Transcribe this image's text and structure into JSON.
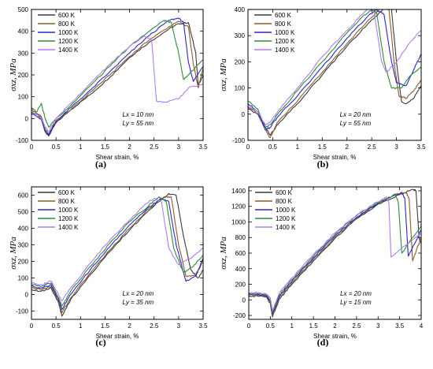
{
  "colors": {
    "600 K": "#3a3a3a",
    "800 K": "#8b5a2b",
    "1000 K": "#2828d0",
    "1200 K": "#2e8b3a",
    "1400 K": "#b07cf0"
  },
  "chart_data": [
    {
      "type": "line",
      "panel_label": "(a)",
      "xlabel": "Shear strain, %",
      "ylabel": "σxz, MPa",
      "xlim": [
        0.0,
        3.5
      ],
      "ylim": [
        -100,
        500
      ],
      "xticks": [
        0.0,
        0.5,
        1.0,
        1.5,
        2.0,
        2.5,
        3.0,
        3.5
      ],
      "yticks": [
        -100,
        0,
        100,
        200,
        300,
        400,
        500
      ],
      "legend_loc": "top-left",
      "annotation": [
        "Lx = 10 nm",
        "Ly = 55 nm"
      ],
      "series": [
        {
          "name": "600 K",
          "x": [
            0.0,
            0.1,
            0.2,
            0.28,
            0.35,
            0.5,
            0.8,
            1.2,
            1.6,
            2.0,
            2.4,
            2.8,
            3.0,
            3.2,
            3.35,
            3.4,
            3.5
          ],
          "y": [
            30,
            20,
            0,
            -60,
            -80,
            -20,
            40,
            110,
            190,
            280,
            350,
            410,
            435,
            440,
            300,
            150,
            200
          ]
        },
        {
          "name": "800 K",
          "x": [
            0.0,
            0.1,
            0.2,
            0.28,
            0.35,
            0.5,
            0.8,
            1.2,
            1.6,
            2.0,
            2.4,
            2.8,
            3.0,
            3.2,
            3.3,
            3.4,
            3.5
          ],
          "y": [
            40,
            25,
            10,
            -50,
            -70,
            -10,
            40,
            120,
            200,
            285,
            360,
            420,
            445,
            420,
            250,
            140,
            230
          ]
        },
        {
          "name": "1000 K",
          "x": [
            0.0,
            0.1,
            0.2,
            0.28,
            0.35,
            0.5,
            0.8,
            1.2,
            1.6,
            2.0,
            2.4,
            2.8,
            3.0,
            3.1,
            3.2,
            3.3,
            3.5
          ],
          "y": [
            25,
            10,
            -5,
            -60,
            -75,
            -15,
            50,
            130,
            215,
            300,
            380,
            450,
            460,
            440,
            260,
            170,
            240
          ]
        },
        {
          "name": "1200 K",
          "x": [
            0.0,
            0.1,
            0.2,
            0.28,
            0.35,
            0.5,
            0.8,
            1.2,
            1.6,
            2.0,
            2.4,
            2.7,
            2.85,
            3.0,
            3.1,
            3.2,
            3.5
          ],
          "y": [
            50,
            30,
            70,
            0,
            -40,
            0,
            60,
            150,
            240,
            330,
            400,
            450,
            440,
            300,
            180,
            200,
            270
          ]
        },
        {
          "name": "1400 K",
          "x": [
            0.0,
            0.1,
            0.2,
            0.28,
            0.35,
            0.5,
            0.8,
            1.2,
            1.6,
            2.0,
            2.3,
            2.45,
            2.55,
            2.7,
            3.0,
            3.2,
            3.5
          ],
          "y": [
            30,
            20,
            0,
            -40,
            -60,
            0,
            70,
            160,
            250,
            330,
            380,
            360,
            80,
            75,
            90,
            140,
            160
          ]
        }
      ]
    },
    {
      "type": "line",
      "panel_label": "(b)",
      "xlabel": "Shear strain, %",
      "ylabel": "σxz, MPa",
      "xlim": [
        0.0,
        3.5
      ],
      "ylim": [
        -100,
        400
      ],
      "xticks": [
        0.0,
        0.5,
        1.0,
        1.5,
        2.0,
        2.5,
        3.0,
        3.5
      ],
      "yticks": [
        -100,
        0,
        100,
        200,
        300,
        400
      ],
      "legend_loc": "top-left",
      "annotation": [
        "Lx = 20 nm",
        "Ly = 55 nm"
      ],
      "series": [
        {
          "name": "600 K",
          "x": [
            0.0,
            0.2,
            0.35,
            0.45,
            0.6,
            1.0,
            1.5,
            2.0,
            2.5,
            2.8,
            2.9,
            3.0,
            3.1,
            3.2,
            3.35,
            3.5
          ],
          "y": [
            20,
            0,
            -50,
            -80,
            -40,
            40,
            150,
            260,
            360,
            410,
            400,
            200,
            50,
            40,
            60,
            110
          ]
        },
        {
          "name": "800 K",
          "x": [
            0.0,
            0.2,
            0.35,
            0.45,
            0.6,
            1.0,
            1.5,
            2.0,
            2.5,
            2.7,
            2.85,
            2.95,
            3.05,
            3.2,
            3.35,
            3.5
          ],
          "y": [
            30,
            0,
            -60,
            -90,
            -30,
            50,
            160,
            270,
            370,
            410,
            400,
            200,
            70,
            60,
            90,
            130
          ]
        },
        {
          "name": "1000 K",
          "x": [
            0.0,
            0.2,
            0.35,
            0.45,
            0.6,
            1.0,
            1.5,
            2.0,
            2.4,
            2.6,
            2.75,
            2.9,
            3.0,
            3.2,
            3.35,
            3.5
          ],
          "y": [
            40,
            10,
            -60,
            -50,
            -10,
            70,
            180,
            290,
            370,
            400,
            380,
            200,
            120,
            110,
            170,
            230
          ]
        },
        {
          "name": "1200 K",
          "x": [
            0.0,
            0.2,
            0.35,
            0.45,
            0.6,
            1.0,
            1.5,
            2.0,
            2.3,
            2.5,
            2.6,
            2.75,
            2.9,
            3.1,
            3.3,
            3.5
          ],
          "y": [
            50,
            20,
            -50,
            -40,
            0,
            90,
            200,
            310,
            370,
            400,
            390,
            200,
            100,
            100,
            150,
            180
          ]
        },
        {
          "name": "1400 K",
          "x": [
            0.0,
            0.2,
            0.35,
            0.45,
            0.6,
            1.0,
            1.5,
            2.0,
            2.3,
            2.45,
            2.55,
            2.7,
            2.8,
            3.0,
            3.3,
            3.5
          ],
          "y": [
            30,
            10,
            -40,
            -30,
            10,
            100,
            220,
            320,
            380,
            410,
            390,
            200,
            160,
            200,
            280,
            320
          ]
        }
      ]
    },
    {
      "type": "line",
      "panel_label": "(c)",
      "xlabel": "Shear strain, %",
      "ylabel": "σxz, MPa",
      "xlim": [
        0.0,
        3.5
      ],
      "ylim": [
        -150,
        650
      ],
      "xticks": [
        0.0,
        0.5,
        1.0,
        1.5,
        2.0,
        2.5,
        3.0,
        3.5
      ],
      "yticks": [
        -100,
        0,
        100,
        200,
        300,
        400,
        500,
        600
      ],
      "legend_loc": "top-left",
      "annotation": [
        "Lx = 20 nm",
        "Ly = 35 nm"
      ],
      "series": [
        {
          "name": "600 K",
          "x": [
            0.0,
            0.2,
            0.4,
            0.55,
            0.62,
            0.8,
            1.2,
            1.6,
            2.0,
            2.4,
            2.8,
            2.95,
            3.1,
            3.25,
            3.4,
            3.5
          ],
          "y": [
            30,
            20,
            40,
            -50,
            -130,
            -30,
            120,
            260,
            390,
            510,
            610,
            600,
            350,
            150,
            100,
            150
          ]
        },
        {
          "name": "800 K",
          "x": [
            0.0,
            0.2,
            0.4,
            0.55,
            0.62,
            0.8,
            1.2,
            1.6,
            2.0,
            2.4,
            2.7,
            2.85,
            3.0,
            3.15,
            3.35,
            3.5
          ],
          "y": [
            40,
            30,
            50,
            -40,
            -110,
            -20,
            130,
            270,
            400,
            520,
            590,
            590,
            300,
            110,
            120,
            200
          ]
        },
        {
          "name": "1000 K",
          "x": [
            0.0,
            0.2,
            0.4,
            0.55,
            0.62,
            0.8,
            1.2,
            1.6,
            2.0,
            2.4,
            2.65,
            2.8,
            2.95,
            3.15,
            3.35,
            3.5
          ],
          "y": [
            50,
            40,
            60,
            -30,
            -90,
            0,
            150,
            290,
            420,
            530,
            580,
            560,
            300,
            80,
            110,
            220
          ]
        },
        {
          "name": "1200 K",
          "x": [
            0.0,
            0.2,
            0.4,
            0.55,
            0.62,
            0.8,
            1.2,
            1.6,
            2.0,
            2.4,
            2.6,
            2.75,
            2.9,
            3.1,
            3.3,
            3.5
          ],
          "y": [
            60,
            50,
            70,
            -20,
            -70,
            20,
            170,
            310,
            440,
            540,
            590,
            560,
            280,
            130,
            170,
            240
          ]
        },
        {
          "name": "1400 K",
          "x": [
            0.0,
            0.2,
            0.4,
            0.55,
            0.62,
            0.8,
            1.2,
            1.6,
            2.0,
            2.3,
            2.5,
            2.65,
            2.8,
            3.0,
            3.3,
            3.5
          ],
          "y": [
            70,
            60,
            80,
            0,
            -40,
            40,
            190,
            330,
            450,
            540,
            580,
            560,
            280,
            180,
            230,
            280
          ]
        }
      ]
    },
    {
      "type": "line",
      "panel_label": "(d)",
      "xlabel": "Shear strain, %",
      "ylabel": "σxz, MPa",
      "xlim": [
        0.0,
        4.0
      ],
      "ylim": [
        -250,
        1450
      ],
      "xticks": [
        0.0,
        0.5,
        1.0,
        1.5,
        2.0,
        2.5,
        3.0,
        3.5,
        4.0
      ],
      "yticks": [
        -200,
        0,
        200,
        400,
        600,
        800,
        1000,
        1200,
        1400
      ],
      "legend_loc": "top-left",
      "annotation": [
        "Lx = 20 nm",
        "Ly = 15 nm"
      ],
      "series": [
        {
          "name": "600 K",
          "x": [
            0.0,
            0.2,
            0.4,
            0.5,
            0.55,
            0.7,
            1.0,
            1.5,
            2.0,
            2.5,
            3.0,
            3.5,
            3.8,
            3.88,
            3.95,
            4.0
          ],
          "y": [
            50,
            50,
            40,
            -50,
            -220,
            0,
            200,
            500,
            790,
            1040,
            1230,
            1350,
            1420,
            1400,
            800,
            720
          ]
        },
        {
          "name": "800 K",
          "x": [
            0.0,
            0.2,
            0.4,
            0.5,
            0.55,
            0.7,
            1.0,
            1.5,
            2.0,
            2.5,
            3.0,
            3.4,
            3.65,
            3.72,
            3.8,
            4.0
          ],
          "y": [
            60,
            60,
            50,
            -30,
            -200,
            20,
            220,
            520,
            800,
            1050,
            1240,
            1350,
            1380,
            1300,
            500,
            800
          ]
        },
        {
          "name": "1000 K",
          "x": [
            0.0,
            0.2,
            0.4,
            0.5,
            0.55,
            0.7,
            1.0,
            1.5,
            2.0,
            2.5,
            3.0,
            3.3,
            3.55,
            3.62,
            3.7,
            4.0
          ],
          "y": [
            70,
            70,
            60,
            -20,
            -180,
            40,
            240,
            540,
            820,
            1060,
            1240,
            1320,
            1380,
            1300,
            560,
            900
          ]
        },
        {
          "name": "1200 K",
          "x": [
            0.0,
            0.2,
            0.4,
            0.5,
            0.55,
            0.7,
            1.0,
            1.5,
            2.0,
            2.5,
            3.0,
            3.2,
            3.4,
            3.47,
            3.55,
            4.0
          ],
          "y": [
            80,
            80,
            70,
            0,
            -160,
            60,
            260,
            560,
            840,
            1080,
            1250,
            1300,
            1360,
            1250,
            600,
            950
          ]
        },
        {
          "name": "1400 K",
          "x": [
            0.0,
            0.2,
            0.4,
            0.5,
            0.55,
            0.7,
            1.0,
            1.5,
            2.0,
            2.5,
            2.9,
            3.1,
            3.2,
            3.25,
            3.3,
            4.0
          ],
          "y": [
            90,
            90,
            80,
            20,
            -140,
            80,
            280,
            580,
            860,
            1090,
            1230,
            1290,
            1320,
            1250,
            550,
            850
          ]
        }
      ]
    }
  ]
}
